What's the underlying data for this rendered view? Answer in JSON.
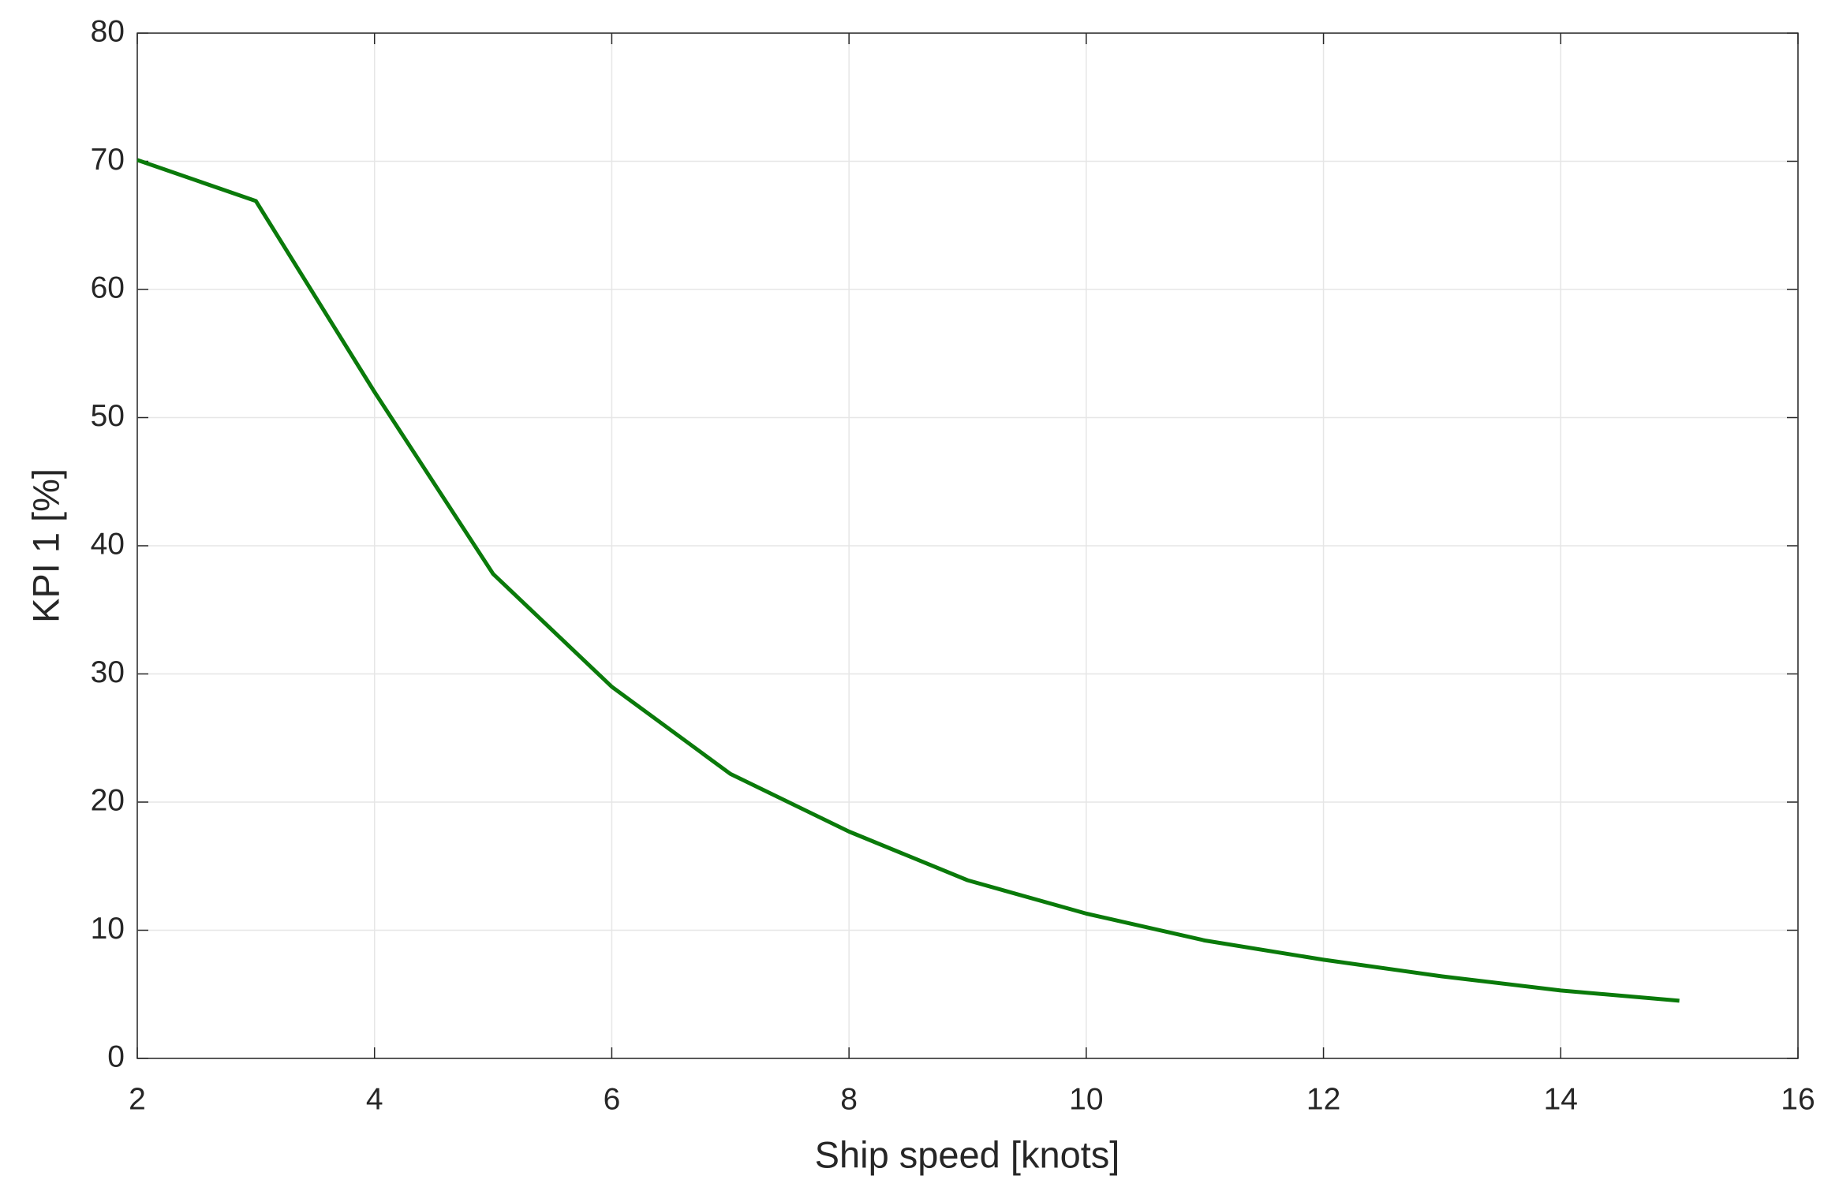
{
  "chart_data": {
    "type": "line",
    "x_label": "Ship speed [knots]",
    "y_label": "KPI 1 [%]",
    "x": [
      2,
      3,
      4,
      5,
      6,
      7,
      8,
      9,
      10,
      11,
      12,
      13,
      14,
      15
    ],
    "series": [
      {
        "color": "#0a7a0a",
        "values": [
          70.1,
          66.9,
          52,
          37.8,
          29,
          22.2,
          17.7,
          13.9,
          11.3,
          9.2,
          7.7,
          6.4,
          5.3,
          4.5
        ]
      }
    ],
    "xlim": [
      2,
      16
    ],
    "xticks": [
      2,
      4,
      6,
      8,
      10,
      12,
      14,
      16
    ],
    "ylim": [
      0,
      80
    ],
    "yticks": [
      0,
      10,
      20,
      30,
      40,
      50,
      60,
      70,
      80
    ],
    "grid": true
  }
}
